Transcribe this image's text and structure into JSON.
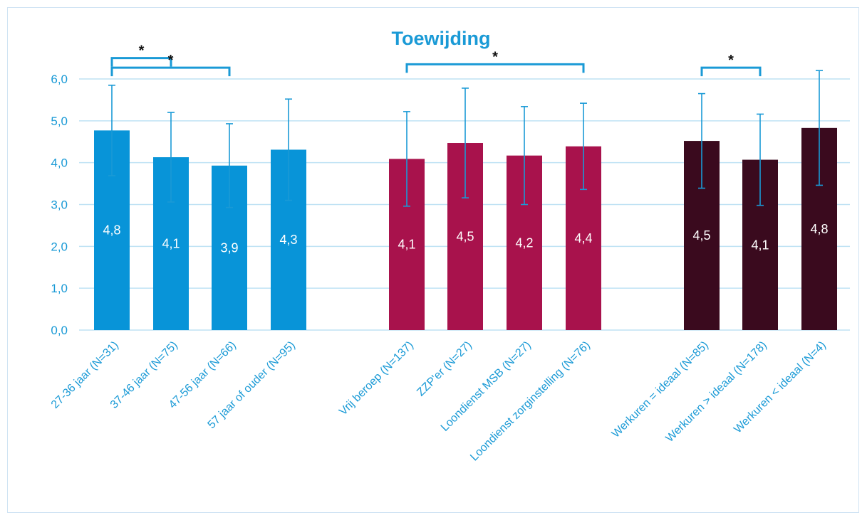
{
  "chart_data": {
    "type": "bar",
    "title": "Toewijding",
    "xlabel": "",
    "ylabel": "",
    "ylim": [
      0,
      6
    ],
    "y_ticks": [
      "0,0",
      "1,0",
      "2,0",
      "3,0",
      "4,0",
      "5,0",
      "6,0"
    ],
    "grid": true,
    "legend": "none",
    "groups": [
      {
        "color": "#0894d8",
        "bars": [
          {
            "category": "27-36 jaar (N=31)",
            "value": 4.77,
            "label": "4,8",
            "error": 1.08
          },
          {
            "category": "37-46 jaar (N=75)",
            "value": 4.13,
            "label": "4,1",
            "error": 1.07
          },
          {
            "category": "47-56 jaar (N=66)",
            "value": 3.93,
            "label": "3,9",
            "error": 1.0
          },
          {
            "category": "57 jaar of ouder (N=95)",
            "value": 4.31,
            "label": "4,3",
            "error": 1.21
          }
        ]
      },
      {
        "color": "#a8124c",
        "bars": [
          {
            "category": "Vrij beroep (N=137)",
            "value": 4.09,
            "label": "4,1",
            "error": 1.13
          },
          {
            "category": "ZZP'er (N=27)",
            "value": 4.47,
            "label": "4,5",
            "error": 1.31
          },
          {
            "category": "Loondienst MSB (N=27)",
            "value": 4.17,
            "label": "4,2",
            "error": 1.17
          },
          {
            "category": "Loondienst zorginstelling (N=76)",
            "value": 4.39,
            "label": "4,4",
            "error": 1.03
          }
        ]
      },
      {
        "color": "#3a0a1e",
        "bars": [
          {
            "category": "Werkuren = ideaal (N=85)",
            "value": 4.52,
            "label": "4,5",
            "error": 1.13
          },
          {
            "category": "Werkuren > ideaal (N=178)",
            "value": 4.07,
            "label": "4,1",
            "error": 1.09
          },
          {
            "category": "Werkuren < ideaal (N=4)",
            "value": 4.83,
            "label": "4,8",
            "error": 1.37
          }
        ]
      }
    ],
    "significance": [
      {
        "from": 0,
        "to": 1,
        "value": 6.5,
        "label": "*"
      },
      {
        "from": 0,
        "to": 2,
        "value": 6.27,
        "label": "*"
      },
      {
        "from": 4,
        "to": 7,
        "value": 6.35,
        "label": "*"
      },
      {
        "from": 8,
        "to": 9,
        "value": 6.27,
        "label": "*"
      }
    ]
  },
  "colors": {
    "axis_text": "#1a9ad6",
    "grid": "#bfe2f4",
    "error_bar": "#1a9ad6",
    "bracket": "#1a9ad6",
    "value_label": "#ffffff",
    "star": "#111111"
  }
}
